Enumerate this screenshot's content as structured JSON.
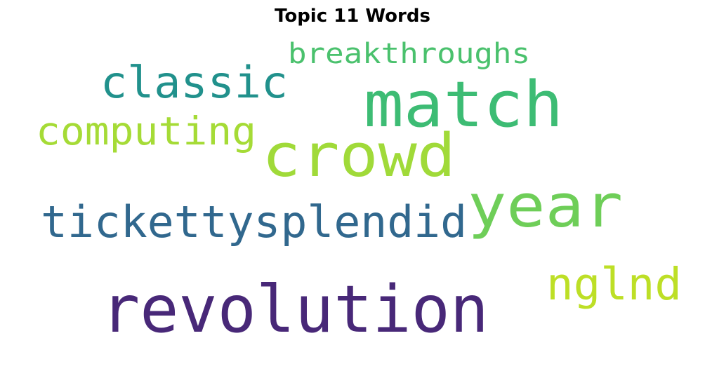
{
  "title": "Topic 11 Words",
  "words": [
    {
      "id": "revolution",
      "text": "revolution",
      "color": "#482878"
    },
    {
      "id": "match",
      "text": "match",
      "color": "#3dbc74"
    },
    {
      "id": "crowd",
      "text": "crowd",
      "color": "#a0da39"
    },
    {
      "id": "year",
      "text": "year",
      "color": "#6ece58"
    },
    {
      "id": "tickettysplendid",
      "text": "tickettysplendid",
      "color": "#31688e"
    },
    {
      "id": "classic",
      "text": "classic",
      "color": "#21918c"
    },
    {
      "id": "computing",
      "text": "computing",
      "color": "#a5db36"
    },
    {
      "id": "breakthroughs",
      "text": "breakthroughs",
      "color": "#4ac16d"
    },
    {
      "id": "nglnd",
      "text": "nglnd",
      "color": "#bddf26"
    }
  ]
}
